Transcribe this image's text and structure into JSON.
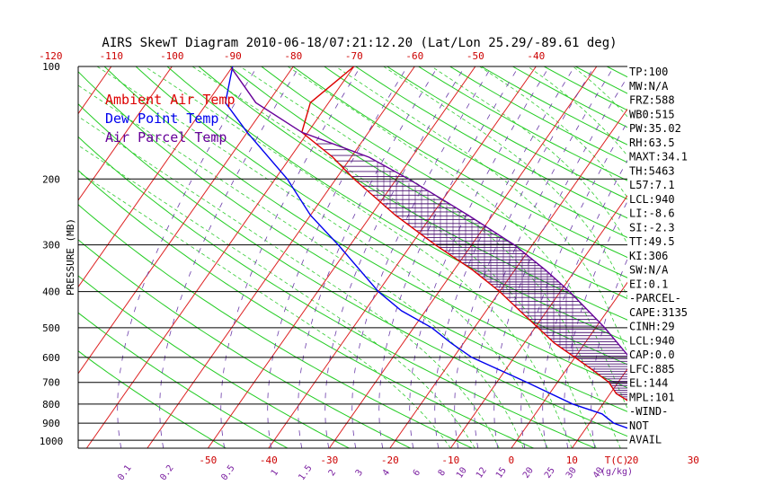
{
  "chart_data": {
    "type": "line",
    "title": "AIRS SkewT Diagram 2010-06-18/07:21:12.20 (Lat/Lon 25.29/-89.61 deg)",
    "ylabel": "PRESSURE (MB)",
    "pressure_ticks": [
      100,
      200,
      300,
      400,
      500,
      600,
      700,
      800,
      900,
      1000
    ],
    "top_temperature_ticks": [
      -120,
      -110,
      -100,
      -90,
      -80,
      -70,
      -60,
      -50,
      -40
    ],
    "bottom_temperature_ticks": [
      -50,
      -40,
      -30,
      -20,
      -10,
      0,
      10,
      20,
      30
    ],
    "bottom_axis_unit": "T(C)",
    "mixing_ratio_ticks": [
      "0.1",
      "0.2",
      "0.5",
      "1",
      "1.5",
      "2",
      "3",
      "4",
      "6",
      "8",
      "10",
      "12",
      "15",
      "20",
      "25",
      "30",
      "40"
    ],
    "mixing_ratio_unit": "(g/kg)",
    "legend": [
      {
        "label": "Ambient Air Temp",
        "color": "#dd0000"
      },
      {
        "label": "Dew Point Temp",
        "color": "#0000ee"
      },
      {
        "label": "Air Parcel Temp",
        "color": "#660099"
      }
    ],
    "series": [
      {
        "name": "Ambient Air Temp",
        "points": [
          [
            1000,
            30
          ],
          [
            975,
            25.5
          ],
          [
            950,
            23.5
          ],
          [
            900,
            21
          ],
          [
            850,
            19
          ],
          [
            800,
            15
          ],
          [
            750,
            11
          ],
          [
            700,
            8.5
          ],
          [
            650,
            4.5
          ],
          [
            600,
            0
          ],
          [
            550,
            -5
          ],
          [
            500,
            -9.5
          ],
          [
            450,
            -14.5
          ],
          [
            400,
            -20
          ],
          [
            350,
            -27
          ],
          [
            300,
            -36
          ],
          [
            250,
            -46
          ],
          [
            200,
            -57
          ],
          [
            175,
            -63
          ],
          [
            150,
            -71
          ],
          [
            125,
            -73
          ],
          [
            100,
            -70
          ]
        ]
      },
      {
        "name": "Dew Point Temp",
        "points": [
          [
            1000,
            23
          ],
          [
            950,
            19
          ],
          [
            900,
            14
          ],
          [
            850,
            11
          ],
          [
            800,
            5
          ],
          [
            700,
            -5
          ],
          [
            600,
            -17
          ],
          [
            550,
            -22
          ],
          [
            500,
            -27
          ],
          [
            450,
            -34
          ],
          [
            400,
            -40
          ],
          [
            300,
            -52
          ],
          [
            250,
            -60
          ],
          [
            200,
            -68
          ],
          [
            150,
            -80
          ],
          [
            125,
            -87
          ],
          [
            100,
            -90
          ]
        ]
      },
      {
        "name": "Air Parcel Temp",
        "points": [
          [
            1000,
            30
          ],
          [
            975,
            25.5
          ],
          [
            940,
            22.5
          ],
          [
            900,
            23
          ],
          [
            850,
            21.5
          ],
          [
            800,
            19.5
          ],
          [
            700,
            14.5
          ],
          [
            600,
            9
          ],
          [
            500,
            1.5
          ],
          [
            400,
            -8.5
          ],
          [
            350,
            -15
          ],
          [
            300,
            -23
          ],
          [
            250,
            -34
          ],
          [
            200,
            -48
          ],
          [
            175,
            -57
          ],
          [
            150,
            -71
          ],
          [
            125,
            -82
          ],
          [
            101,
            -90
          ]
        ]
      }
    ],
    "indices": [
      "TP:100",
      "MW:N/A",
      "FRZ:588",
      "WB0:515",
      "PW:35.02",
      "RH:63.5",
      "MAXT:34.1",
      "TH:5463",
      "L57:7.1",
      "LCL:940",
      "LI:-8.6",
      "SI:-2.3",
      "TT:49.5",
      "KI:306",
      "SW:N/A",
      "EI:0.1",
      "-PARCEL-",
      "CAPE:3135",
      "CINH:29",
      "LCL:940",
      "CAP:0.0",
      "LFC:885",
      "EL:144",
      "MPL:101",
      "-WIND-",
      "NOT",
      "AVAIL"
    ]
  }
}
